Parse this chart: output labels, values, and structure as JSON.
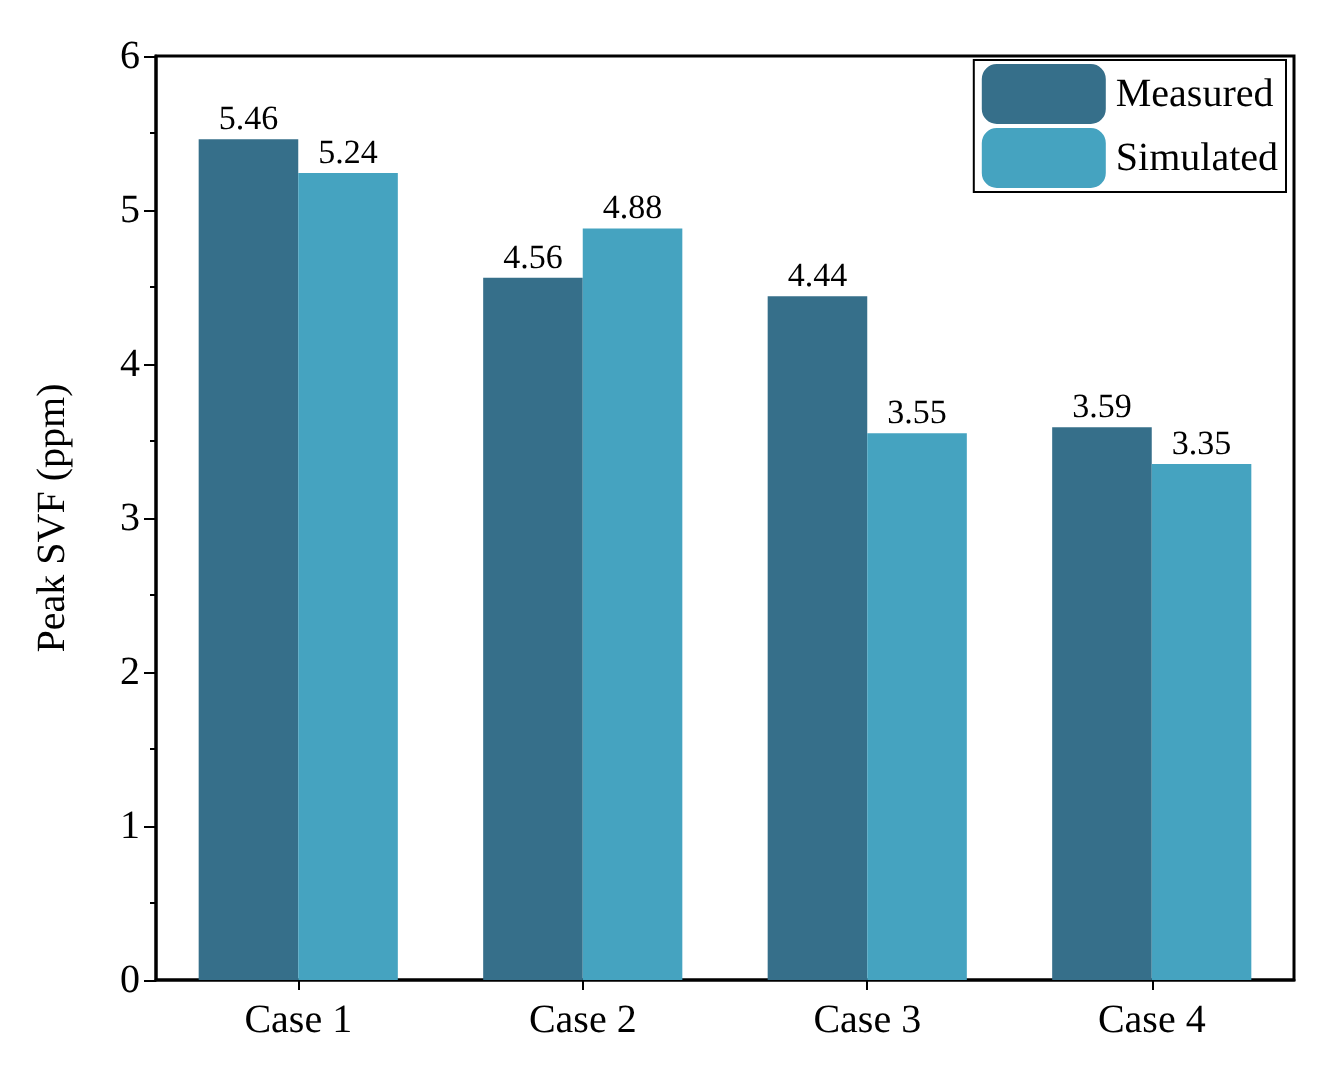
{
  "chart_data": {
    "type": "bar",
    "ylabel": "Peak SVF (ppm)",
    "categories": [
      "Case 1",
      "Case 2",
      "Case 3",
      "Case 4"
    ],
    "series": [
      {
        "name": "Measured",
        "color": "#366f8a",
        "values": [
          5.46,
          4.56,
          4.44,
          3.59
        ]
      },
      {
        "name": "Simulated",
        "color": "#45a3c0",
        "values": [
          5.24,
          4.88,
          3.55,
          3.35
        ]
      }
    ],
    "ylim": [
      0,
      6
    ],
    "yticks": [
      0,
      1,
      2,
      3,
      4,
      5,
      6
    ],
    "grid": false,
    "legend": "top right",
    "data_labels": true
  }
}
